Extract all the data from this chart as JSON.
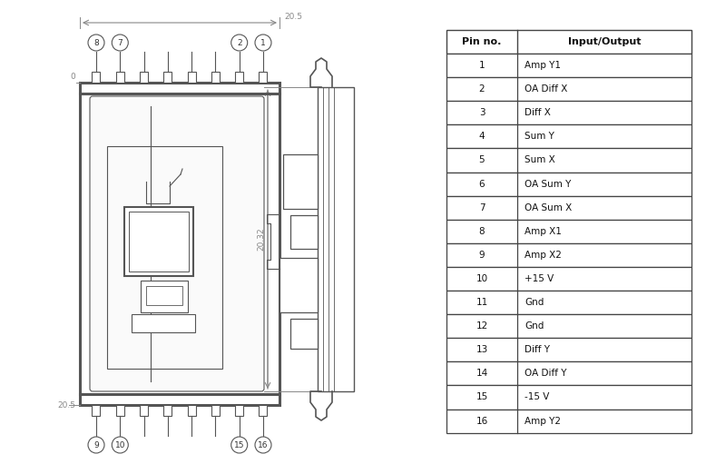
{
  "bg_color": "#ffffff",
  "table_header": [
    "Pin no.",
    "Input/Output"
  ],
  "table_rows": [
    [
      "1",
      "Amp Y1"
    ],
    [
      "2",
      "OA Diff X"
    ],
    [
      "3",
      "Diff X"
    ],
    [
      "4",
      "Sum Y"
    ],
    [
      "5",
      "Sum X"
    ],
    [
      "6",
      "OA Sum Y"
    ],
    [
      "7",
      "OA Sum X"
    ],
    [
      "8",
      "Amp X1"
    ],
    [
      "9",
      "Amp X2"
    ],
    [
      "10",
      "+15 V"
    ],
    [
      "11",
      "Gnd"
    ],
    [
      "12",
      "Gnd"
    ],
    [
      "13",
      "Diff Y"
    ],
    [
      "14",
      "OA Diff Y"
    ],
    [
      "15",
      "-15 V"
    ],
    [
      "16",
      "Amp Y2"
    ]
  ],
  "dim_top": "20.5",
  "dim_left_top": "0",
  "dim_left_bot": "20.5",
  "dim_side": "20.32",
  "pin_top_labels": [
    "8",
    "7",
    "",
    "",
    "",
    "",
    "2",
    "1"
  ],
  "pin_bot_labels": [
    "9",
    "10",
    "",
    "",
    "",
    "",
    "15",
    "16"
  ],
  "line_color": "#555555",
  "dim_color": "#888888",
  "table_border_color": "#444444",
  "font_size_table": 8,
  "font_size_dim": 6.5,
  "font_size_pin": 6.5
}
